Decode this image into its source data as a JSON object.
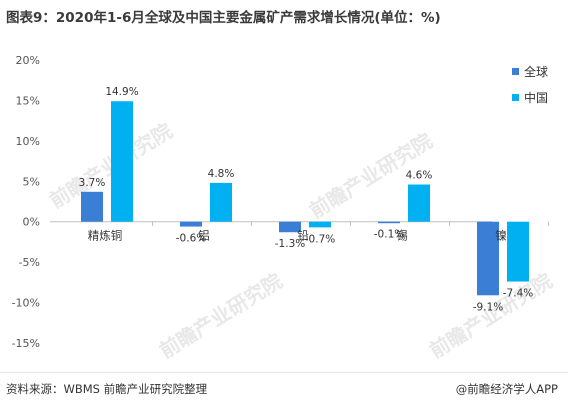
{
  "title": "图表9：2020年1-6月全球及中国主要金属矿产需求增长情况(单位：%)",
  "footer": {
    "source": "资料来源：WBMS 前瞻产业研究院整理",
    "credit": "@前瞻经济学人APP"
  },
  "watermark": "前瞻产业研究院",
  "chart_data": {
    "type": "bar",
    "categories": [
      "精炼铜",
      "铝",
      "铅",
      "锡",
      "镍"
    ],
    "series": [
      {
        "name": "全球",
        "color": "#3a7fd5",
        "values": [
          3.7,
          -0.6,
          -1.3,
          -0.1,
          -9.1
        ]
      },
      {
        "name": "中国",
        "color": "#00b0f0",
        "values": [
          14.9,
          4.8,
          -0.7,
          4.6,
          -7.4
        ]
      }
    ],
    "value_labels": [
      [
        "3.7%",
        "-0.6%",
        "-1.3%",
        "-0.1%",
        "-9.1%"
      ],
      [
        "14.9%",
        "4.8%",
        "-0.7%",
        "4.6%",
        "-7.4%"
      ]
    ],
    "yticks": [
      "20%",
      "15%",
      "10%",
      "5%",
      "0%",
      "-5%",
      "-10%",
      "-15%"
    ],
    "ylim": [
      -15,
      20
    ],
    "legend": "right",
    "grid": false
  }
}
